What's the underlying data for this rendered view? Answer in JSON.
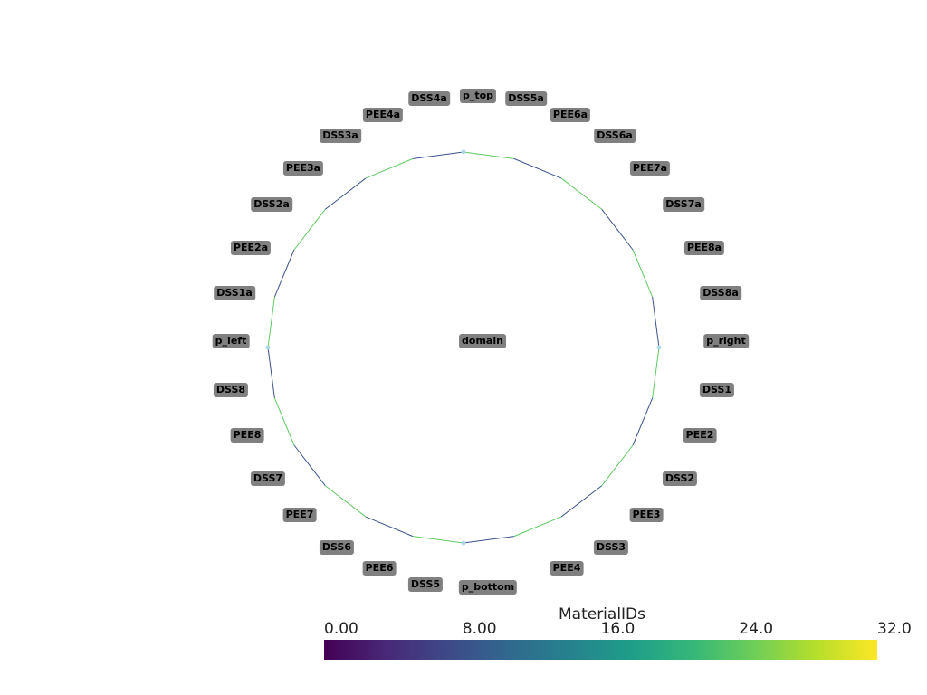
{
  "labels": [
    "p_top",
    "DSS5a",
    "PEE6a",
    "DSS6a",
    "PEE7a",
    "DSS7a",
    "PEE8a",
    "DSS8a",
    "p_right",
    "DSS1",
    "PEE2",
    "DSS2",
    "PEE3",
    "DSS3",
    "PEE4",
    "p_bottom",
    "DSS5",
    "PEE6",
    "DSS6",
    "PEE7",
    "DSS7",
    "PEE8",
    "DSS8",
    "p_left",
    "DSS1a",
    "PEE2a",
    "DSS2a",
    "PEE3a",
    "DSS3a",
    "PEE4a",
    "DSS4a",
    "domain"
  ],
  "colorbar": {
    "title": "MaterialIDs",
    "range": [
      0,
      32
    ],
    "ticks": [
      {
        "value": 0,
        "label": "0.00"
      },
      {
        "value": 8,
        "label": "8.00"
      },
      {
        "value": 16,
        "label": "16.0"
      },
      {
        "value": 24,
        "label": "24.0"
      },
      {
        "value": 32,
        "label": "32.0"
      }
    ]
  }
}
